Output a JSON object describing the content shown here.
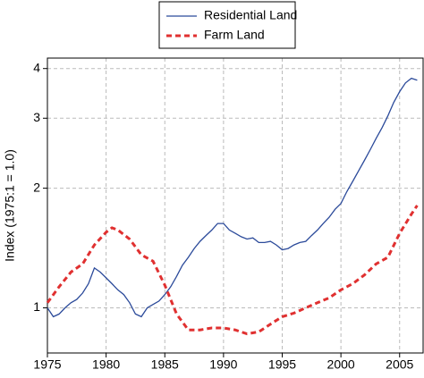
{
  "chart_data": {
    "type": "line",
    "ylabel": "Index (1975:1 = 1.0)",
    "log_y": true,
    "grid": true,
    "legend": "top",
    "xlim": [
      1975,
      2007
    ],
    "xticks": [
      1975,
      1980,
      1985,
      1990,
      1995,
      2000,
      2005
    ],
    "ylim": [
      0.77,
      4.25
    ],
    "yticks": [
      1,
      2,
      3,
      4
    ],
    "series": [
      {
        "name": "Residential Land",
        "color": "#2b4a9a",
        "style": "solid",
        "x": [
          1975,
          1975.5,
          1976,
          1976.5,
          1977,
          1977.5,
          1978,
          1978.5,
          1979,
          1979.5,
          1980,
          1980.5,
          1981,
          1981.5,
          1982,
          1982.5,
          1983,
          1983.5,
          1984,
          1984.5,
          1985,
          1985.5,
          1986,
          1986.5,
          1987,
          1987.5,
          1988,
          1988.5,
          1989,
          1989.5,
          1990,
          1990.5,
          1991,
          1991.5,
          1992,
          1992.5,
          1993,
          1993.5,
          1994,
          1994.5,
          1995,
          1995.5,
          1996,
          1996.5,
          1997,
          1997.5,
          1998,
          1998.5,
          1999,
          1999.5,
          2000,
          2000.5,
          2001,
          2001.5,
          2002,
          2002.5,
          2003,
          2003.5,
          2004,
          2004.5,
          2005,
          2005.5,
          2006,
          2006.5
        ],
        "values": [
          1.0,
          0.95,
          0.965,
          1.0,
          1.03,
          1.05,
          1.09,
          1.15,
          1.26,
          1.23,
          1.19,
          1.15,
          1.11,
          1.08,
          1.03,
          0.965,
          0.95,
          1.0,
          1.02,
          1.04,
          1.08,
          1.13,
          1.2,
          1.28,
          1.34,
          1.41,
          1.47,
          1.52,
          1.57,
          1.63,
          1.63,
          1.57,
          1.54,
          1.51,
          1.49,
          1.5,
          1.46,
          1.46,
          1.47,
          1.44,
          1.4,
          1.41,
          1.44,
          1.46,
          1.47,
          1.52,
          1.57,
          1.63,
          1.69,
          1.77,
          1.83,
          1.96,
          2.08,
          2.21,
          2.35,
          2.5,
          2.67,
          2.84,
          3.04,
          3.29,
          3.5,
          3.68,
          3.78,
          3.74
        ]
      },
      {
        "name": "Farm Land",
        "color": "#e03030",
        "style": "dashed",
        "x": [
          1975,
          1976,
          1977,
          1978,
          1979,
          1980,
          1980.5,
          1981,
          1982,
          1983,
          1984,
          1985,
          1986,
          1987,
          1988,
          1989,
          1990,
          1991,
          1992,
          1993,
          1994,
          1995,
          1996,
          1997,
          1998,
          1999,
          2000,
          2001,
          2002,
          2003,
          2004,
          2005,
          2006,
          2006.5
        ],
        "values": [
          1.03,
          1.13,
          1.23,
          1.29,
          1.44,
          1.55,
          1.59,
          1.57,
          1.49,
          1.36,
          1.31,
          1.14,
          0.965,
          0.88,
          0.88,
          0.89,
          0.89,
          0.88,
          0.86,
          0.87,
          0.91,
          0.95,
          0.97,
          1.0,
          1.03,
          1.06,
          1.11,
          1.15,
          1.21,
          1.29,
          1.34,
          1.54,
          1.72,
          1.81
        ]
      }
    ]
  }
}
